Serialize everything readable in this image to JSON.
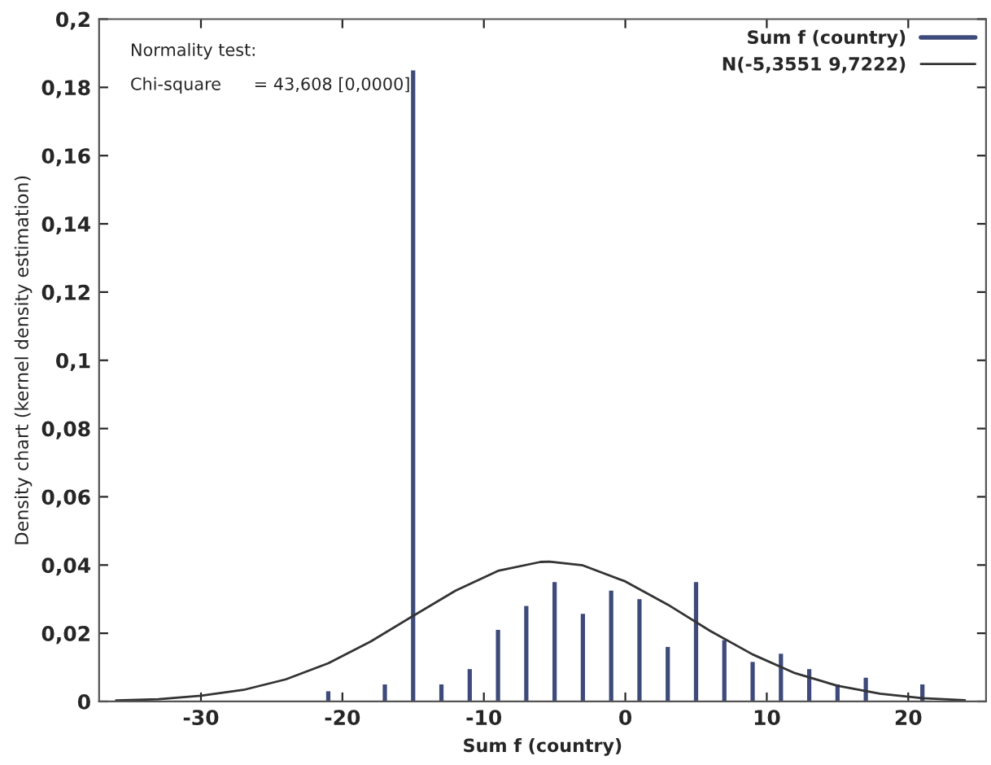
{
  "chart_data": {
    "type": "bar",
    "xlabel": "Sum f (country)",
    "ylabel": "Density chart (kernel density estimation)",
    "annotations": [
      "Normality test:",
      "Chi-square      = 43,608 [0,0000]"
    ],
    "series": [
      {
        "name": "Sum f (country)",
        "color": "#3d4a7a",
        "x": [
          -21,
          -17,
          -15,
          -13,
          -11,
          -9,
          -7,
          -5,
          -3,
          -1,
          1,
          3,
          5,
          7,
          9,
          11,
          13,
          15,
          17,
          21
        ],
        "values": [
          0.003,
          0.005,
          0.185,
          0.005,
          0.0095,
          0.021,
          0.028,
          0.035,
          0.0257,
          0.0325,
          0.03,
          0.016,
          0.035,
          0.018,
          0.0116,
          0.014,
          0.0095,
          0.005,
          0.007,
          0.005
        ]
      },
      {
        "name": "N(-5,3551 9,7222)",
        "type": "line",
        "color": "#333333",
        "x": [
          -36,
          -33,
          -30,
          -27,
          -24,
          -21,
          -18,
          -15,
          -12,
          -9,
          -6,
          -5.36,
          -3,
          0,
          3,
          6,
          9,
          12,
          15,
          18,
          21,
          24
        ],
        "values": [
          0.0003,
          0.0007,
          0.0017,
          0.0034,
          0.0065,
          0.0112,
          0.0176,
          0.0251,
          0.0325,
          0.0383,
          0.0409,
          0.041,
          0.0399,
          0.0352,
          0.0284,
          0.0207,
          0.0138,
          0.0083,
          0.0046,
          0.0023,
          0.001,
          0.0004
        ]
      }
    ],
    "xlim": [
      -37.2,
      25.5
    ],
    "ylim": [
      0,
      0.2
    ],
    "xticks": [
      -30,
      -20,
      -10,
      0,
      10,
      20
    ],
    "yticks": [
      {
        "value": 0,
        "label": "0"
      },
      {
        "value": 0.02,
        "label": "0,02"
      },
      {
        "value": 0.04,
        "label": "0,04"
      },
      {
        "value": 0.06,
        "label": "0,06"
      },
      {
        "value": 0.08,
        "label": "0,08"
      },
      {
        "value": 0.1,
        "label": "0,1"
      },
      {
        "value": 0.12,
        "label": "0,12"
      },
      {
        "value": 0.14,
        "label": "0,14"
      },
      {
        "value": 0.16,
        "label": "0,16"
      },
      {
        "value": 0.18,
        "label": "0,18"
      },
      {
        "value": 0.2,
        "label": "0,2"
      }
    ],
    "legend": "top right",
    "grid": false
  }
}
